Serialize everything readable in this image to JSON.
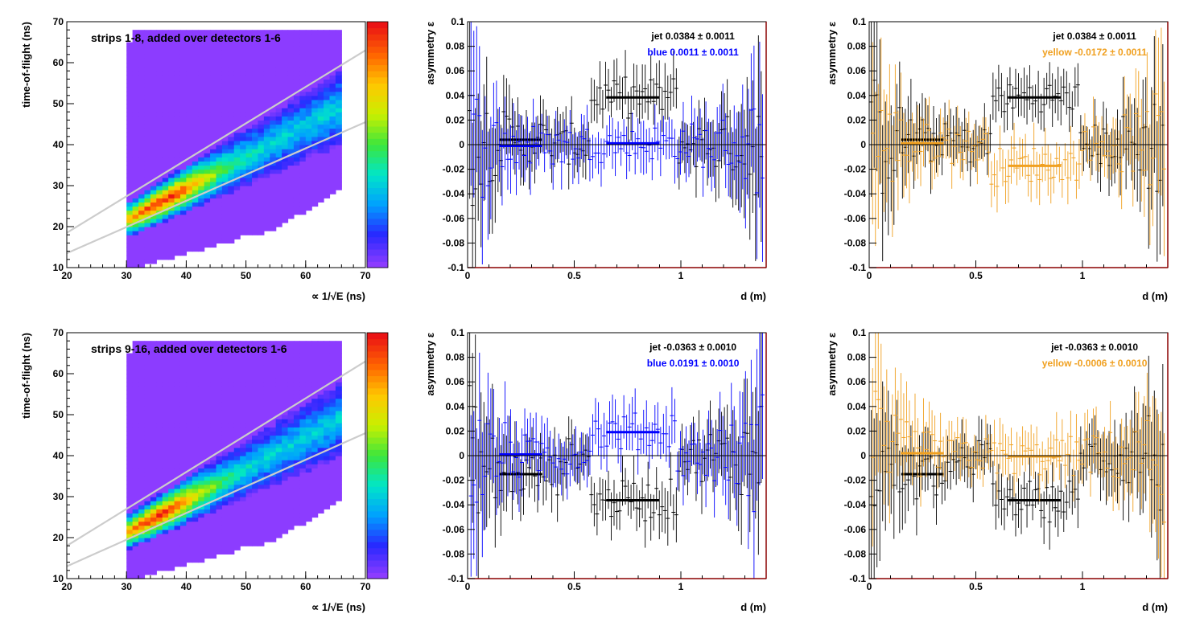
{
  "chart_data": [
    {
      "type": "heatmap",
      "title": "strips 1-8, added over detectors 1-6",
      "xlabel": "∝ 1/√E (ns)",
      "ylabel": "time-of-flight (ns)",
      "xlim": [
        20,
        70
      ],
      "ylim": [
        10,
        70
      ],
      "xticks": [
        "20",
        "30",
        "40",
        "50",
        "60",
        "70"
      ],
      "yticks": [
        "10",
        "20",
        "30",
        "40",
        "50",
        "60",
        "70"
      ],
      "band_lines": [
        {
          "x": [
            20,
            70
          ],
          "y": [
            18.5,
            63
          ]
        },
        {
          "x": [
            20,
            70
          ],
          "y": [
            13.5,
            45.5
          ]
        }
      ],
      "peak": {
        "x": 36,
        "y": 27
      },
      "colors": {
        "background": "#8c3cff",
        "band_line": "#cccccc"
      }
    },
    {
      "type": "scatter",
      "ylabel": "asymmetry ε",
      "xlabel": "d (m)",
      "xlim": [
        0,
        1.4
      ],
      "ylim": [
        -0.1,
        0.1
      ],
      "xticks": [
        "0",
        "0.5",
        "1"
      ],
      "yticks": [
        "-0.1",
        "-0.08",
        "-0.06",
        "-0.04",
        "-0.02",
        "0",
        "0.02",
        "0.04",
        "0.06",
        "0.08",
        "0.1"
      ],
      "series": [
        {
          "name": "jet",
          "label": "jet  0.0384 ± 0.0011",
          "color": "#000000",
          "fit_ranges": [
            [
              0.15,
              0.35,
              0.004
            ],
            [
              0.65,
              0.9,
              0.0384
            ]
          ]
        },
        {
          "name": "blue",
          "label": "blue  0.0011 ± 0.0011",
          "color": "#0000ff",
          "fit_ranges": [
            [
              0.15,
              0.35,
              -0.001
            ],
            [
              0.65,
              0.9,
              0.0011
            ]
          ]
        }
      ]
    },
    {
      "type": "scatter",
      "ylabel": "asymmetry ε",
      "xlabel": "d (m)",
      "xlim": [
        0,
        1.4
      ],
      "ylim": [
        -0.1,
        0.1
      ],
      "xticks": [
        "0",
        "0.5",
        "1"
      ],
      "yticks": [
        "-0.1",
        "-0.08",
        "-0.06",
        "-0.04",
        "-0.02",
        "0",
        "0.02",
        "0.04",
        "0.06",
        "0.08",
        "0.1"
      ],
      "series": [
        {
          "name": "jet",
          "label": "jet  0.0384 ± 0.0011",
          "color": "#000000",
          "fit_ranges": [
            [
              0.15,
              0.35,
              0.004
            ],
            [
              0.65,
              0.9,
              0.0384
            ]
          ]
        },
        {
          "name": "yellow",
          "label": "yellow -0.0172 ± 0.0011",
          "color": "#f0a020",
          "fit_ranges": [
            [
              0.15,
              0.35,
              0.001
            ],
            [
              0.65,
              0.9,
              -0.0172
            ]
          ]
        }
      ]
    },
    {
      "type": "heatmap",
      "title": "strips 9-16, added over detectors 1-6",
      "xlabel": "∝ 1/√E (ns)",
      "ylabel": "time-of-flight (ns)",
      "xlim": [
        20,
        70
      ],
      "ylim": [
        10,
        70
      ],
      "xticks": [
        "20",
        "30",
        "40",
        "50",
        "60",
        "70"
      ],
      "yticks": [
        "10",
        "20",
        "30",
        "40",
        "50",
        "60",
        "70"
      ],
      "band_lines": [
        {
          "x": [
            20,
            70
          ],
          "y": [
            18,
            63
          ]
        },
        {
          "x": [
            20,
            70
          ],
          "y": [
            13,
            45.5
          ]
        }
      ],
      "peak": {
        "x": 35,
        "y": 26
      },
      "colors": {
        "background": "#8c3cff",
        "band_line": "#cccccc"
      }
    },
    {
      "type": "scatter",
      "ylabel": "asymmetry ε",
      "xlabel": "d (m)",
      "xlim": [
        0,
        1.4
      ],
      "ylim": [
        -0.1,
        0.1
      ],
      "xticks": [
        "0",
        "0.5",
        "1"
      ],
      "yticks": [
        "-0.1",
        "-0.08",
        "-0.06",
        "-0.04",
        "-0.02",
        "0",
        "0.02",
        "0.04",
        "0.06",
        "0.08",
        "0.1"
      ],
      "series": [
        {
          "name": "jet",
          "label": "jet -0.0363 ± 0.0010",
          "color": "#000000",
          "fit_ranges": [
            [
              0.15,
              0.35,
              -0.015
            ],
            [
              0.65,
              0.9,
              -0.0363
            ]
          ]
        },
        {
          "name": "blue",
          "label": "blue  0.0191 ± 0.0010",
          "color": "#0000ff",
          "fit_ranges": [
            [
              0.15,
              0.35,
              0.001
            ],
            [
              0.65,
              0.9,
              0.0191
            ]
          ]
        }
      ]
    },
    {
      "type": "scatter",
      "ylabel": "asymmetry ε",
      "xlabel": "d (m)",
      "xlim": [
        0,
        1.4
      ],
      "ylim": [
        -0.1,
        0.1
      ],
      "xticks": [
        "0",
        "0.5",
        "1"
      ],
      "yticks": [
        "-0.1",
        "-0.08",
        "-0.06",
        "-0.04",
        "-0.02",
        "0",
        "0.02",
        "0.04",
        "0.06",
        "0.08",
        "0.1"
      ],
      "series": [
        {
          "name": "jet",
          "label": "jet -0.0363 ± 0.0010",
          "color": "#000000",
          "fit_ranges": [
            [
              0.15,
              0.35,
              -0.015
            ],
            [
              0.65,
              0.9,
              -0.0363
            ]
          ]
        },
        {
          "name": "yellow",
          "label": "yellow -0.0006 ± 0.0010",
          "color": "#f0a020",
          "fit_ranges": [
            [
              0.15,
              0.35,
              0.002
            ],
            [
              0.65,
              0.9,
              -0.0006
            ]
          ]
        }
      ]
    }
  ]
}
